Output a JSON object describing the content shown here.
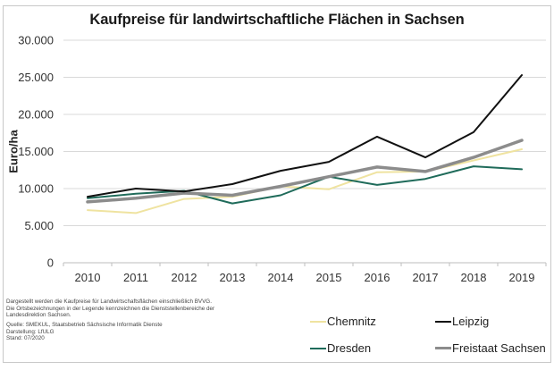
{
  "title": "Kaufpreise für landwirtschaftliche Flächen in Sachsen",
  "notes": {
    "line1": "Dargestellt werden die Kaufpreise für Landwirtschaftsflächen einschließlich BVVG.",
    "line2": "Die Ortsbezeichnungen in der Legende kennzeichnen die Dienststellenbereiche der Landesdirektion Sachsen.",
    "source": "Quelle: SMEKUL, Staatsbetrieb Sächsische Informatik Dienste",
    "author": "Darstellung: LfULG",
    "date": "Stand: 07/2020"
  },
  "chart_data": {
    "type": "line",
    "title": "Kaufpreise für landwirtschaftliche Flächen in Sachsen",
    "xlabel": "",
    "ylabel": "Euro/ha",
    "ylim": [
      0,
      30000
    ],
    "yticks": [
      0,
      5000,
      10000,
      15000,
      20000,
      25000,
      30000
    ],
    "ytick_labels": [
      "0",
      "5.000",
      "10.000",
      "15.000",
      "20.000",
      "25.000",
      "30.000"
    ],
    "grid": true,
    "legend_position": "bottom-right",
    "categories": [
      "2010",
      "2011",
      "2012",
      "2013",
      "2014",
      "2015",
      "2016",
      "2017",
      "2018",
      "2019"
    ],
    "series": [
      {
        "name": "Chemnitz",
        "color": "#efe3a0",
        "values": [
          7100,
          6700,
          8600,
          8900,
          10300,
          9900,
          12200,
          12300,
          13800,
          15300
        ]
      },
      {
        "name": "Leipzig",
        "color": "#111111",
        "values": [
          8900,
          10000,
          9600,
          10600,
          12400,
          13600,
          17000,
          14200,
          17600,
          25300
        ]
      },
      {
        "name": "Dresden",
        "color": "#1f6b5a",
        "values": [
          8700,
          9300,
          9700,
          8000,
          9100,
          11600,
          10500,
          11300,
          13000,
          12600
        ]
      },
      {
        "name": "Freistaat Sachsen",
        "color": "#8c8c8c",
        "values": [
          8200,
          8700,
          9400,
          9100,
          10300,
          11600,
          12900,
          12300,
          14200,
          16500
        ]
      }
    ]
  }
}
